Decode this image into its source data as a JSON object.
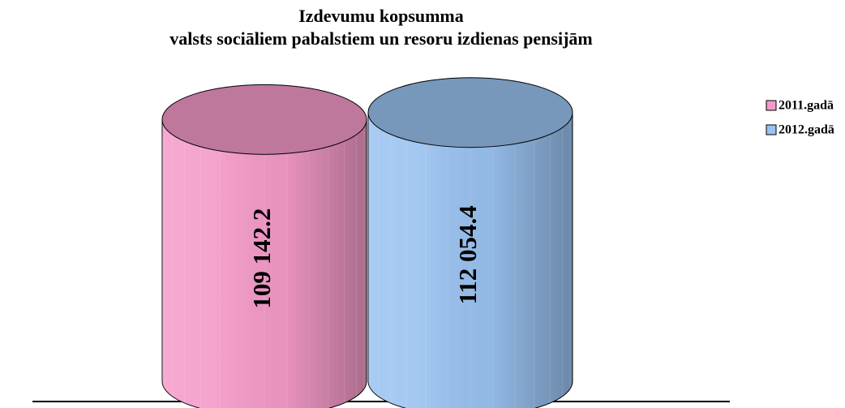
{
  "chart_data": {
    "type": "bar",
    "title": "Izdevumu kopsumma",
    "subtitle": "valsts sociāliem pabalstiem un resoru izdienas pensijām",
    "categories": [
      null
    ],
    "series": [
      {
        "name": "2011.gadā",
        "color": "#f49ac8",
        "values": [
          109142.2
        ],
        "value_labels": [
          "109 142.2"
        ]
      },
      {
        "name": "2012.gadā",
        "color": "#99c2f0",
        "values": [
          112054.4
        ],
        "value_labels": [
          "112 054.4"
        ]
      }
    ],
    "ylim": [
      0,
      115000
    ],
    "legend": "right"
  }
}
